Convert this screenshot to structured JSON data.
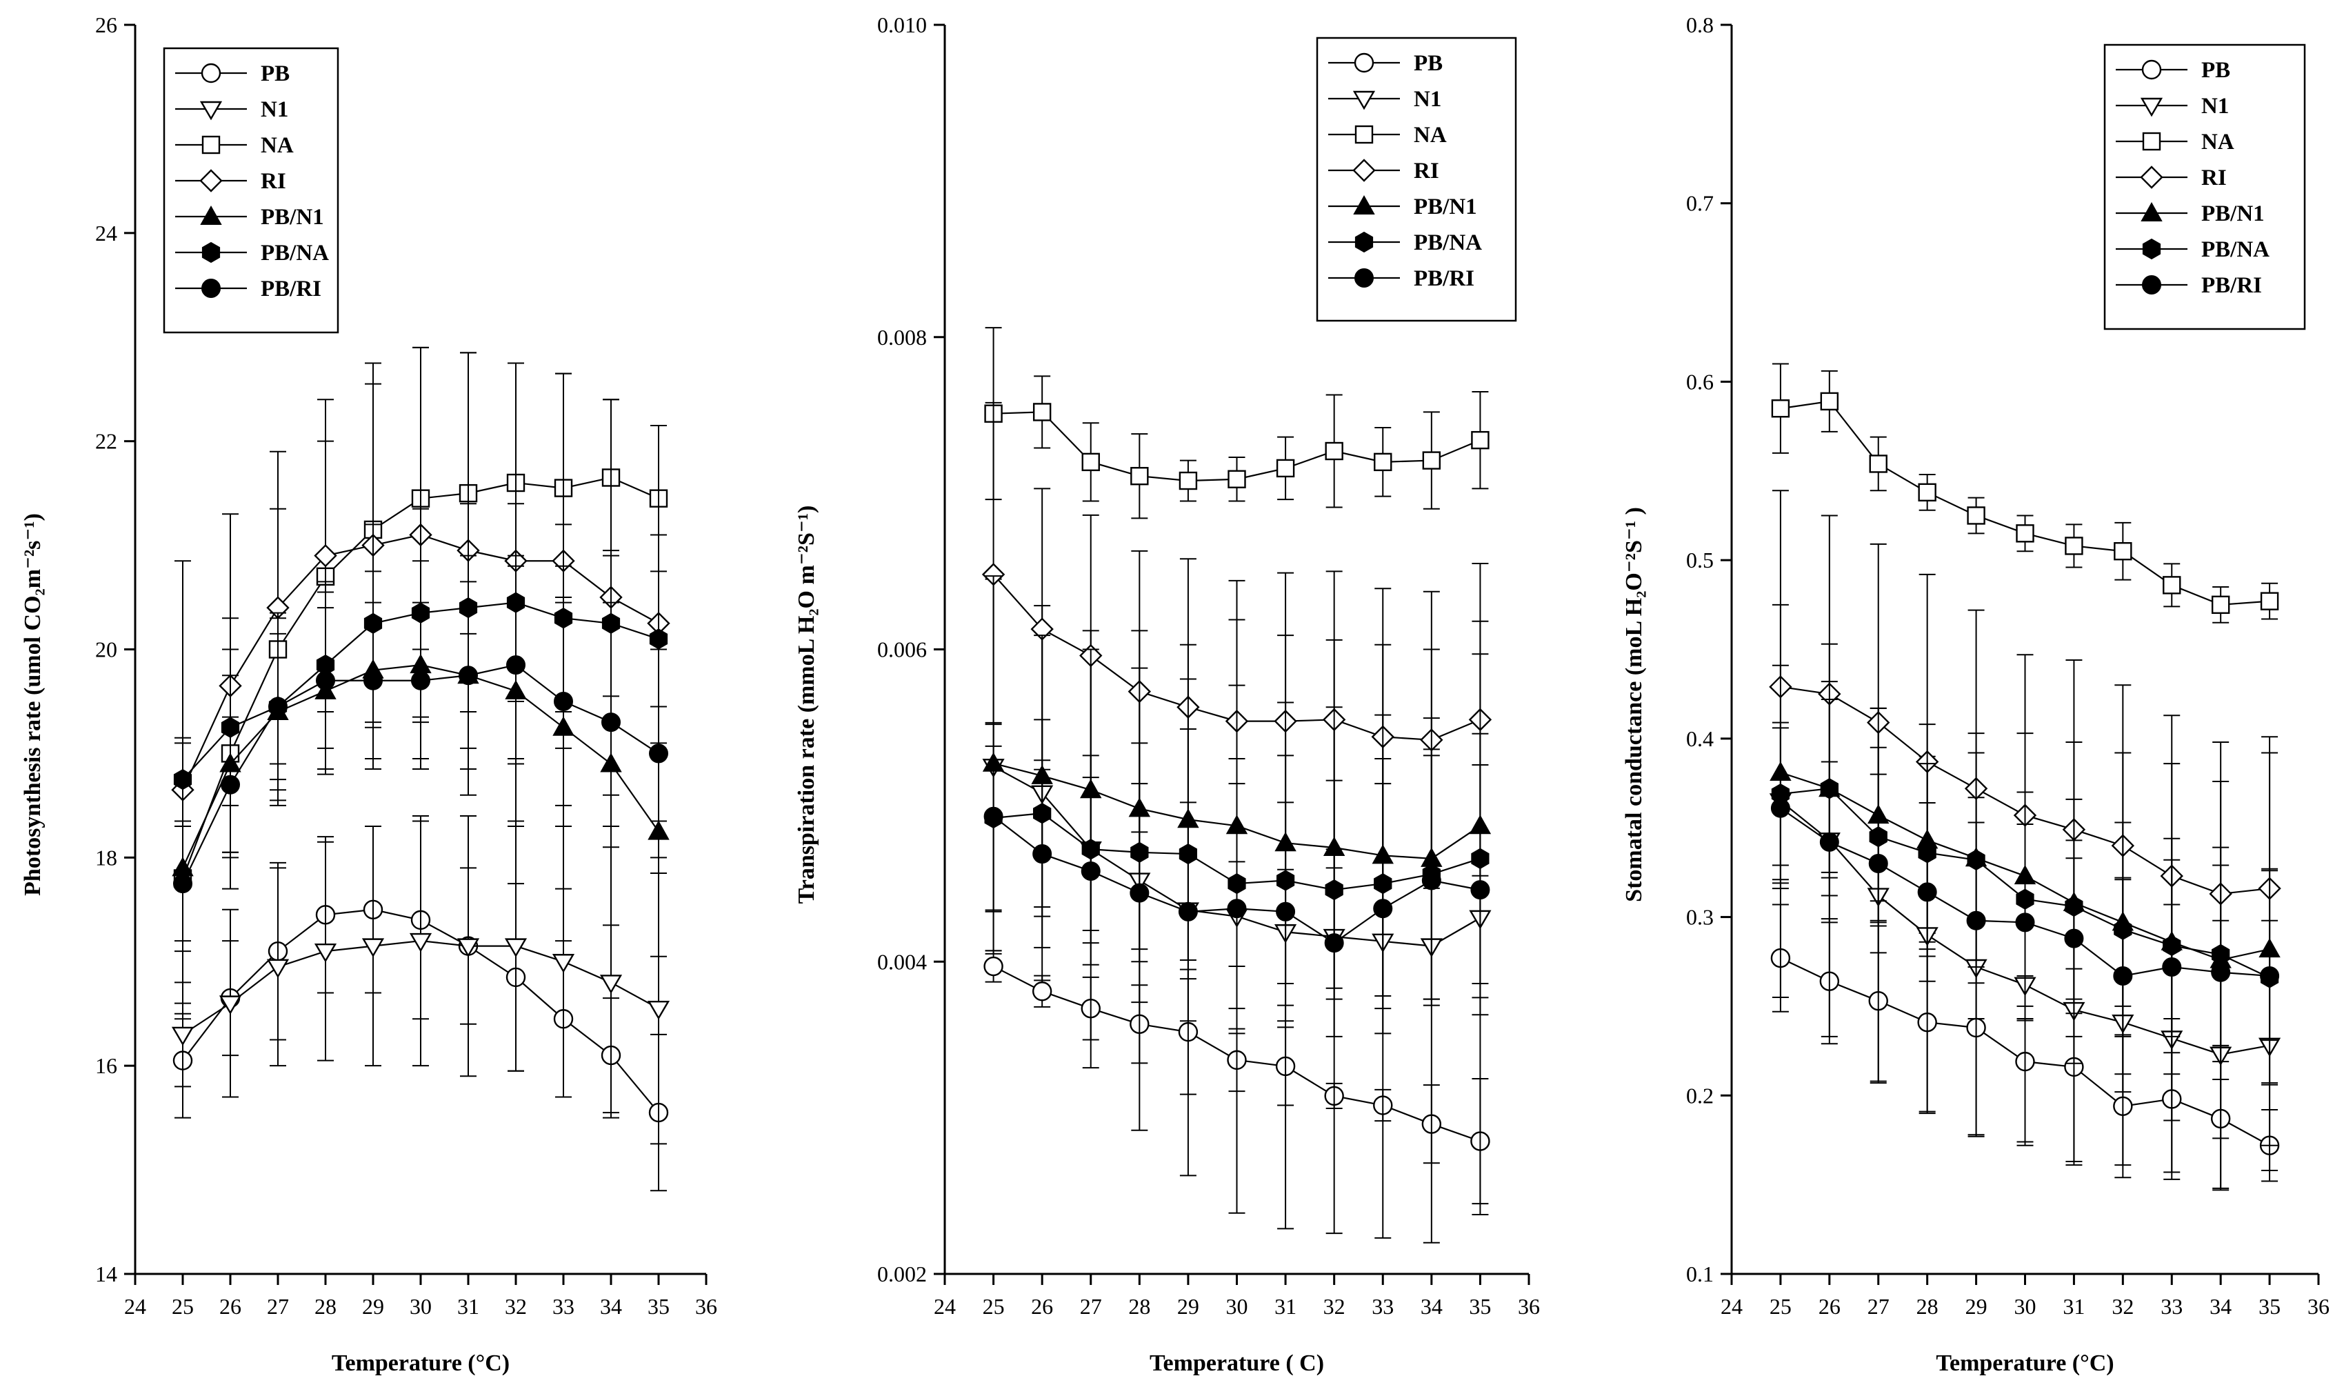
{
  "chart_data": [
    {
      "type": "line",
      "x": [
        25,
        26,
        27,
        28,
        29,
        30,
        31,
        32,
        33,
        34,
        35
      ],
      "xlim": [
        24,
        36
      ],
      "ylim": [
        14,
        26
      ],
      "xticks": [
        "24",
        "25",
        "26",
        "27",
        "28",
        "29",
        "30",
        "31",
        "32",
        "33",
        "34",
        "35",
        "36"
      ],
      "yticks": [
        "14",
        "16",
        "18",
        "20",
        "22",
        "24",
        "26"
      ],
      "xlabel": "Temperature (°C)",
      "ylabel": "Photosynthesis rate (umol CO₂m⁻²s⁻¹)",
      "legend_position": "top-left",
      "series": [
        {
          "name": "PB",
          "marker": "circle-open",
          "values": [
            16.05,
            16.65,
            17.1,
            17.45,
            17.5,
            17.4,
            17.15,
            16.85,
            16.45,
            16.1,
            15.55
          ],
          "err": [
            0.55,
            0.55,
            0.85,
            0.75,
            0.8,
            0.95,
            0.75,
            0.9,
            0.75,
            0.55,
            0.75
          ]
        },
        {
          "name": "N1",
          "marker": "triangle-down-open",
          "values": [
            16.3,
            16.6,
            16.95,
            17.1,
            17.15,
            17.2,
            17.15,
            17.15,
            17.0,
            16.8,
            16.55
          ],
          "err": [
            0.5,
            0.9,
            0.95,
            1.05,
            1.15,
            1.2,
            1.25,
            1.2,
            1.3,
            1.3,
            1.3
          ]
        },
        {
          "name": "NA",
          "marker": "square-open",
          "values": [
            17.8,
            19.0,
            20.0,
            20.7,
            21.15,
            21.45,
            21.5,
            21.6,
            21.55,
            21.65,
            21.45
          ],
          "err": [
            1.3,
            1.3,
            1.35,
            1.3,
            1.4,
            1.45,
            1.35,
            1.15,
            1.1,
            0.75,
            0.7
          ]
        },
        {
          "name": "RI",
          "marker": "diamond-open",
          "values": [
            18.65,
            19.65,
            20.4,
            20.9,
            21.0,
            21.1,
            20.95,
            20.85,
            20.85,
            20.5,
            20.25
          ],
          "err": [
            2.2,
            1.65,
            1.5,
            1.5,
            1.75,
            1.8,
            1.9,
            1.9,
            1.8,
            1.9,
            1.9
          ]
        },
        {
          "name": "PB/N1",
          "marker": "triangle-up-filled",
          "values": [
            17.9,
            18.9,
            19.4,
            19.6,
            19.8,
            19.85,
            19.75,
            19.6,
            19.25,
            18.9,
            18.25
          ],
          "err": [
            0.8,
            0.85,
            0.9,
            0.8,
            0.95,
            1.0,
            1.15,
            1.3,
            1.55,
            1.55,
            1.2
          ]
        },
        {
          "name": "PB/NA",
          "marker": "hexagon-filled",
          "values": [
            18.75,
            19.25,
            19.45,
            19.85,
            20.25,
            20.35,
            20.4,
            20.45,
            20.3,
            20.25,
            20.1
          ],
          "err": [
            0.4,
            0.75,
            0.9,
            0.8,
            0.95,
            1.0,
            1.0,
            0.95,
            0.9,
            0.7,
            1.0
          ]
        },
        {
          "name": "PB/RI",
          "marker": "circle-filled",
          "values": [
            17.75,
            18.7,
            19.45,
            19.7,
            19.7,
            19.7,
            19.75,
            19.85,
            19.5,
            19.3,
            19.0
          ],
          "err": [
            0.55,
            0.65,
            0.7,
            0.85,
            0.75,
            0.75,
            0.9,
            0.95,
            1.0,
            1.0,
            1.0
          ]
        }
      ]
    },
    {
      "type": "line",
      "x": [
        25,
        26,
        27,
        28,
        29,
        30,
        31,
        32,
        33,
        34,
        35
      ],
      "xlim": [
        24,
        36
      ],
      "ylim": [
        0.002,
        0.01
      ],
      "xticks": [
        "24",
        "25",
        "26",
        "27",
        "28",
        "29",
        "30",
        "31",
        "32",
        "33",
        "34",
        "35",
        "36"
      ],
      "yticks": [
        "0.002",
        "0.004",
        "0.006",
        "0.008",
        "0.010"
      ],
      "xlabel": "Temperature ( C)",
      "ylabel": "Transpiration rate (mmoL H₂O m⁻²S⁻¹)",
      "legend_position": "top-right",
      "series": [
        {
          "name": "PB",
          "marker": "circle-open",
          "values": [
            0.00397,
            0.00381,
            0.0037,
            0.0036,
            0.00355,
            0.00337,
            0.00333,
            0.00314,
            0.00308,
            0.00296,
            0.00285
          ],
          "err": [
            0.0001,
            0.0001,
            0.0002,
            0.00025,
            0.0004,
            0.0002,
            0.00025,
            8e-05,
            0.0001,
            0.00025,
            0.0004
          ]
        },
        {
          "name": "N1",
          "marker": "triangle-down-open",
          "values": [
            0.00525,
            0.00508,
            0.00472,
            0.00452,
            0.00433,
            0.00429,
            0.00419,
            0.00416,
            0.00413,
            0.0041,
            0.00428
          ],
          "err": [
            0.0012,
            0.0012,
            0.0014,
            0.0016,
            0.0017,
            0.0019,
            0.0019,
            0.0019,
            0.0019,
            0.0019,
            0.0019
          ]
        },
        {
          "name": "NA",
          "marker": "square-open",
          "values": [
            0.00751,
            0.00752,
            0.0072,
            0.00711,
            0.00708,
            0.00709,
            0.00716,
            0.00727,
            0.0072,
            0.00721,
            0.00734
          ],
          "err": [
            0.00055,
            0.00023,
            0.00025,
            0.00027,
            0.00013,
            0.00014,
            0.0002,
            0.00036,
            0.00022,
            0.00031,
            0.00031
          ]
        },
        {
          "name": "RI",
          "marker": "diamond-open",
          "values": [
            0.00648,
            0.00613,
            0.00596,
            0.00573,
            0.00563,
            0.00554,
            0.00554,
            0.00555,
            0.00544,
            0.00542,
            0.00555
          ],
          "err": [
            0.0011,
            0.0009,
            0.0009,
            0.0009,
            0.00095,
            0.0009,
            0.00095,
            0.00095,
            0.00095,
            0.00095,
            0.001
          ]
        },
        {
          "name": "PB/N1",
          "marker": "triangle-up-filled",
          "values": [
            0.00527,
            0.00519,
            0.0051,
            0.00498,
            0.00491,
            0.00487,
            0.00476,
            0.00473,
            0.00468,
            0.00466,
            0.00487
          ],
          "err": [
            0.0012,
            0.0009,
            0.0009,
            0.0009,
            0.0009,
            0.0009,
            0.0009,
            0.0009,
            0.0009,
            0.0009,
            0.0011
          ]
        },
        {
          "name": "PB/NA",
          "marker": "hexagon-filled",
          "values": [
            0.00492,
            0.00495,
            0.00472,
            0.0047,
            0.00469,
            0.0045,
            0.00452,
            0.00446,
            0.0045,
            0.00456,
            0.00466
          ],
          "err": [
            0.0006,
            0.0006,
            0.0006,
            0.0007,
            0.0008,
            0.0008,
            0.0008,
            0.0007,
            0.0008,
            0.0008,
            0.0008
          ]
        },
        {
          "name": "PB/RI",
          "marker": "circle-filled",
          "values": [
            0.00493,
            0.00469,
            0.00458,
            0.00444,
            0.00432,
            0.00434,
            0.00432,
            0.00412,
            0.00434,
            0.00452,
            0.00446
          ],
          "err": [
            0.0006,
            0.0006,
            0.0006,
            0.0007,
            0.0007,
            0.0008,
            0.0007,
            0.0006,
            0.0008,
            0.0008,
            0.0008
          ]
        }
      ]
    },
    {
      "type": "line",
      "x": [
        25,
        26,
        27,
        28,
        29,
        30,
        31,
        32,
        33,
        34,
        35
      ],
      "xlim": [
        24,
        36
      ],
      "ylim": [
        0.1,
        0.8
      ],
      "xticks": [
        "24",
        "25",
        "26",
        "27",
        "28",
        "29",
        "30",
        "31",
        "32",
        "33",
        "34",
        "35",
        "36"
      ],
      "yticks": [
        "0.1",
        "0.2",
        "0.3",
        "0.4",
        "0.5",
        "0.6",
        "0.7",
        "0.8"
      ],
      "xlabel": "Temperature (°C)",
      "ylabel": "Stomatal conductance (moL H₂O⁻²S⁻¹ )",
      "legend_position": "top-right",
      "series": [
        {
          "name": "PB",
          "marker": "circle-open",
          "values": [
            0.277,
            0.264,
            0.253,
            0.241,
            0.238,
            0.219,
            0.216,
            0.194,
            0.198,
            0.187,
            0.172
          ],
          "err": [
            0.03,
            0.035,
            0.045,
            0.05,
            0.06,
            0.045,
            0.055,
            0.04,
            0.045,
            0.04,
            0.02
          ]
        },
        {
          "name": "N1",
          "marker": "triangle-down-open",
          "values": [
            0.365,
            0.343,
            0.312,
            0.29,
            0.272,
            0.262,
            0.248,
            0.241,
            0.232,
            0.223,
            0.228
          ],
          "err": [
            0.11,
            0.11,
            0.105,
            0.1,
            0.095,
            0.09,
            0.085,
            0.08,
            0.075,
            0.075,
            0.07
          ]
        },
        {
          "name": "NA",
          "marker": "square-open",
          "values": [
            0.585,
            0.589,
            0.554,
            0.538,
            0.525,
            0.515,
            0.508,
            0.505,
            0.486,
            0.475,
            0.477
          ],
          "err": [
            0.025,
            0.017,
            0.015,
            0.01,
            0.01,
            0.01,
            0.012,
            0.016,
            0.012,
            0.01,
            0.01
          ]
        },
        {
          "name": "RI",
          "marker": "diamond-open",
          "values": [
            0.429,
            0.425,
            0.409,
            0.387,
            0.372,
            0.357,
            0.349,
            0.34,
            0.323,
            0.313,
            0.316
          ],
          "err": [
            0.11,
            0.1,
            0.1,
            0.105,
            0.1,
            0.09,
            0.095,
            0.09,
            0.09,
            0.085,
            0.085
          ]
        },
        {
          "name": "PB/N1",
          "marker": "triangle-up-filled",
          "values": [
            0.381,
            0.372,
            0.357,
            0.343,
            0.333,
            0.323,
            0.308,
            0.297,
            0.286,
            0.276,
            0.282
          ],
          "err": [
            0.06,
            0.06,
            0.06,
            0.065,
            0.07,
            0.08,
            0.09,
            0.095,
            0.1,
            0.1,
            0.11
          ]
        },
        {
          "name": "PB/NA",
          "marker": "hexagon-filled",
          "values": [
            0.369,
            0.372,
            0.345,
            0.336,
            0.332,
            0.31,
            0.306,
            0.293,
            0.284,
            0.279,
            0.266
          ],
          "err": [
            0.04,
            0.05,
            0.05,
            0.05,
            0.06,
            0.06,
            0.06,
            0.06,
            0.06,
            0.06,
            0.06
          ]
        },
        {
          "name": "PB/RI",
          "marker": "circle-filled",
          "values": [
            0.361,
            0.342,
            0.33,
            0.314,
            0.298,
            0.297,
            0.288,
            0.267,
            0.272,
            0.269,
            0.267
          ],
          "err": [
            0.045,
            0.045,
            0.05,
            0.05,
            0.055,
            0.055,
            0.055,
            0.055,
            0.06,
            0.06,
            0.06
          ]
        }
      ]
    }
  ]
}
